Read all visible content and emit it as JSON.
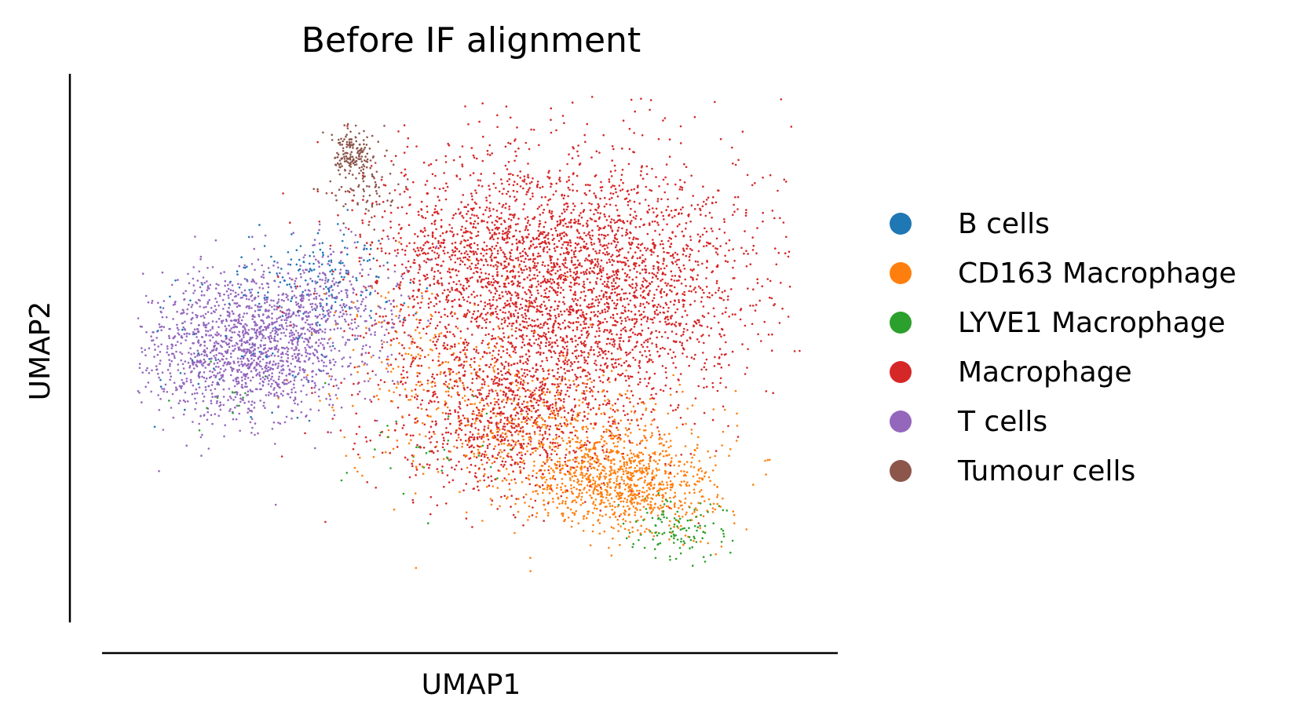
{
  "chart_data": {
    "type": "scatter",
    "title": "Before IF alignment",
    "xlabel": "UMAP1",
    "ylabel": "UMAP2",
    "legend_position": "right",
    "xlim": [
      0,
      100
    ],
    "ylim": [
      0,
      100
    ],
    "grid": false,
    "series": [
      {
        "name": "B cells",
        "color": "#1f77b4",
        "clusters": [
          {
            "x": 28,
            "y": 62,
            "sx": 6,
            "sy": 6,
            "n": 140
          },
          {
            "x": 17,
            "y": 50,
            "sx": 8,
            "sy": 8,
            "n": 60
          }
        ]
      },
      {
        "name": "CD163 Macrophage",
        "color": "#ff7f0e",
        "clusters": [
          {
            "x": 73,
            "y": 22,
            "sx": 7,
            "sy": 5,
            "n": 950
          },
          {
            "x": 62,
            "y": 33,
            "sx": 10,
            "sy": 7,
            "n": 450
          },
          {
            "x": 45,
            "y": 45,
            "sx": 8,
            "sy": 10,
            "n": 220
          }
        ]
      },
      {
        "name": "LYVE1 Macrophage",
        "color": "#2ca02c",
        "clusters": [
          {
            "x": 81,
            "y": 13,
            "sx": 3.5,
            "sy": 3,
            "n": 120
          },
          {
            "x": 44,
            "y": 30,
            "sx": 6,
            "sy": 6,
            "n": 30
          },
          {
            "x": 15,
            "y": 38,
            "sx": 4,
            "sy": 4,
            "n": 15
          }
        ]
      },
      {
        "name": "Macrophage",
        "color": "#d62728",
        "clusters": [
          {
            "x": 65,
            "y": 62,
            "sx": 14,
            "sy": 13,
            "n": 3400
          },
          {
            "x": 55,
            "y": 35,
            "sx": 10,
            "sy": 8,
            "n": 900
          },
          {
            "x": 47,
            "y": 70,
            "sx": 6,
            "sy": 8,
            "n": 250
          }
        ]
      },
      {
        "name": "T cells",
        "color": "#9467bd",
        "clusters": [
          {
            "x": 16,
            "y": 49,
            "sx": 8,
            "sy": 7,
            "n": 1500
          },
          {
            "x": 28,
            "y": 58,
            "sx": 6,
            "sy": 6,
            "n": 350
          }
        ]
      },
      {
        "name": "Tumour cells",
        "color": "#8c564b",
        "clusters": [
          {
            "x": 32.5,
            "y": 88,
            "sx": 1.6,
            "sy": 2.2,
            "n": 140
          },
          {
            "x": 34,
            "y": 82,
            "sx": 3,
            "sy": 4,
            "n": 90
          }
        ]
      }
    ]
  }
}
